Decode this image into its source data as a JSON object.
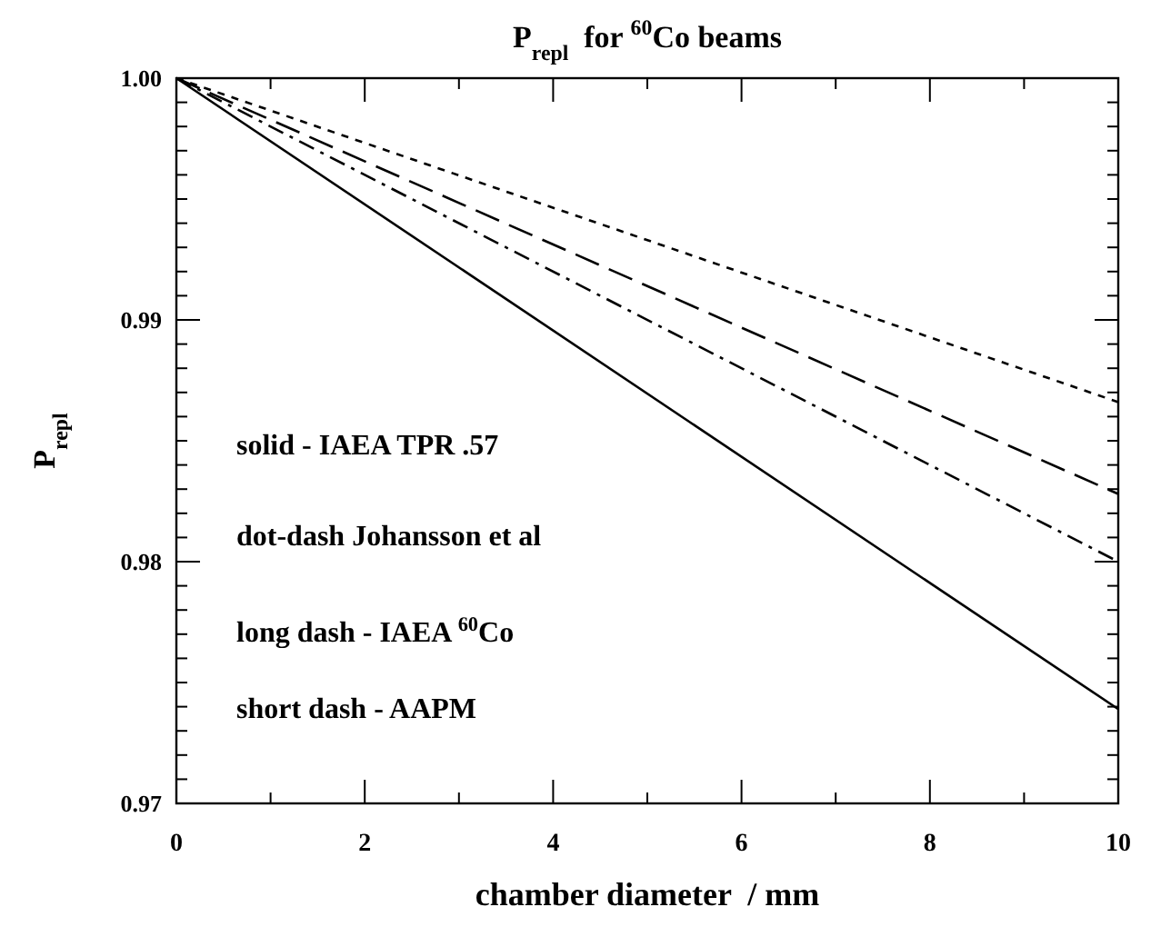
{
  "chart_data": {
    "type": "line",
    "title": "P$_{repl}$  for $^{60}$Co beams",
    "xlabel": "chamber diameter  / mm",
    "ylabel": "P$_{repl}$",
    "x": [
      0,
      10
    ],
    "series": [
      {
        "color": "#000000",
        "line_style": "solid",
        "values": [
          1.0,
          0.9739
        ]
      },
      {
        "color": "#000000",
        "line_style": "dashdot",
        "values": [
          1.0,
          0.98
        ]
      },
      {
        "color": "#000000",
        "line_style": "longdash",
        "values": [
          1.0,
          0.9828
        ]
      },
      {
        "color": "#000000",
        "line_style": "dotted",
        "values": [
          1.0,
          0.9866
        ]
      }
    ],
    "xlim": [
      0,
      10
    ],
    "ylim": [
      0.97,
      1.0
    ],
    "xticks": [
      0,
      {
        "value": 1,
        "label": null
      },
      2,
      {
        "value": 3,
        "label": null
      },
      4,
      {
        "value": 5,
        "label": null
      },
      6,
      {
        "value": 7,
        "label": null
      },
      8,
      {
        "value": 9,
        "label": null
      },
      10
    ],
    "yticks": [
      0.97,
      {
        "value": 0.971,
        "label": null
      },
      {
        "value": 0.972,
        "label": null
      },
      {
        "value": 0.973,
        "label": null
      },
      {
        "value": 0.974,
        "label": null
      },
      {
        "value": 0.975,
        "label": null
      },
      {
        "value": 0.976,
        "label": null
      },
      {
        "value": 0.977,
        "label": null
      },
      {
        "value": 0.978,
        "label": null
      },
      {
        "value": 0.979,
        "label": null
      },
      0.98,
      {
        "value": 0.981,
        "label": null
      },
      {
        "value": 0.982,
        "label": null
      },
      {
        "value": 0.983,
        "label": null
      },
      {
        "value": 0.984,
        "label": null
      },
      {
        "value": 0.985,
        "label": null
      },
      {
        "value": 0.986,
        "label": null
      },
      {
        "value": 0.987,
        "label": null
      },
      {
        "value": 0.988,
        "label": null
      },
      {
        "value": 0.989,
        "label": null
      },
      0.99,
      {
        "value": 0.991,
        "label": null
      },
      {
        "value": 0.992,
        "label": null
      },
      {
        "value": 0.993,
        "label": null
      },
      {
        "value": 0.994,
        "label": null
      },
      {
        "value": 0.995,
        "label": null
      },
      {
        "value": 0.996,
        "label": null
      },
      {
        "value": 0.997,
        "label": null
      },
      {
        "value": 0.998,
        "label": null
      },
      {
        "value": 0.999,
        "label": null
      },
      {
        "value": 1.0,
        "label": "1.00"
      }
    ],
    "annotations": [
      "solid - IAEA TPR .57",
      "dot-dash Johansson et al",
      "long dash - IAEA $^{60}$Co",
      "short dash - AAPM"
    ],
    "grid": false,
    "marker": "none"
  }
}
